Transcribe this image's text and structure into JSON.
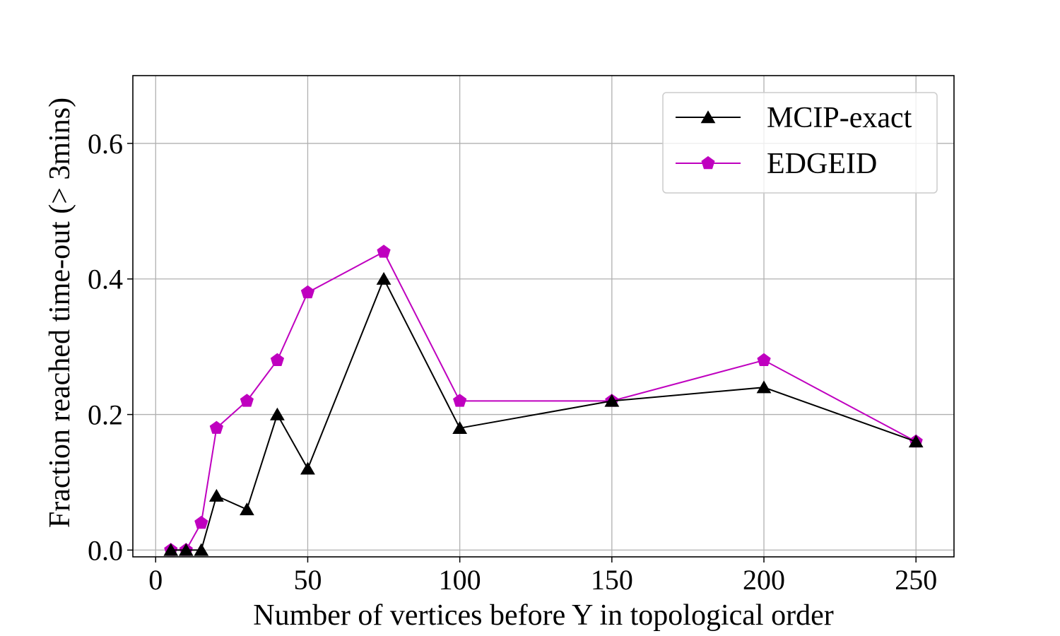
{
  "chart_data": {
    "type": "line",
    "title": "",
    "xlabel": "Number of vertices before Y in topological order",
    "ylabel": "Fraction reached time-out (> 3mins)",
    "xlim": [
      -7.5,
      262.5
    ],
    "ylim": [
      -0.01,
      0.7
    ],
    "xticks": [
      0,
      50,
      100,
      150,
      200,
      250
    ],
    "yticks": [
      0.0,
      0.2,
      0.4,
      0.6
    ],
    "xtick_labels": [
      "0",
      "50",
      "100",
      "150",
      "200",
      "250"
    ],
    "ytick_labels": [
      "0.0",
      "0.2",
      "0.4",
      "0.6"
    ],
    "grid": true,
    "legend_position": "top-right",
    "x": [
      5,
      10,
      15,
      20,
      30,
      40,
      50,
      75,
      100,
      150,
      200,
      250
    ],
    "series": [
      {
        "name": "MCIP-exact",
        "color": "#000000",
        "marker": "triangle",
        "values": [
          0.0,
          0.0,
          0.0,
          0.08,
          0.06,
          0.2,
          0.12,
          0.4,
          0.18,
          0.22,
          0.24,
          0.16
        ]
      },
      {
        "name": "EDGEID",
        "color": "#bf00bf",
        "marker": "pentagon",
        "values": [
          0.0,
          0.0,
          0.04,
          0.18,
          0.22,
          0.28,
          0.38,
          0.44,
          0.22,
          0.22,
          0.28,
          0.16
        ]
      }
    ]
  }
}
